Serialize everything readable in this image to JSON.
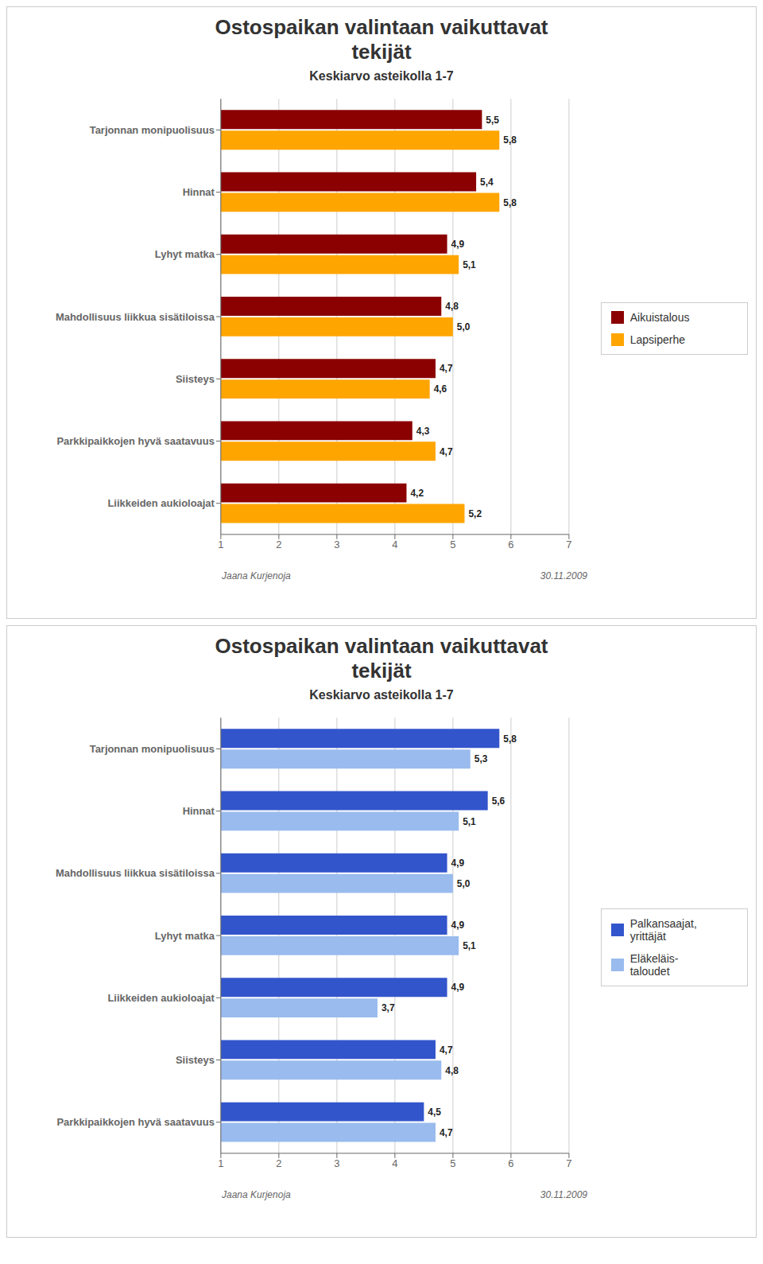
{
  "chart_data": [
    {
      "type": "bar",
      "orientation": "horizontal",
      "title": "Ostospaikan valintaan vaikuttavat\ntekijät",
      "subtitle": "Keskiarvo asteikolla 1-7",
      "categories": [
        "Tarjonnan monipuolisuus",
        "Hinnat",
        "Lyhyt matka",
        "Mahdollisuus liikkua sisätiloissa",
        "Siisteys",
        "Parkkipaikkojen hyvä saatavuus",
        "Liikkeiden aukioloajat"
      ],
      "series": [
        {
          "name": "Aikuistalous",
          "color": "#8B0000",
          "values": [
            5.5,
            5.4,
            4.9,
            4.8,
            4.7,
            4.3,
            4.2
          ],
          "value_labels": [
            "5,5",
            "5,4",
            "4,9",
            "4,8",
            "4,7",
            "4,3",
            "4,2"
          ]
        },
        {
          "name": "Lapsiperhe",
          "color": "#FFA500",
          "values": [
            5.8,
            5.8,
            5.1,
            5.0,
            4.6,
            4.7,
            5.2
          ],
          "value_labels": [
            "5,8",
            "5,8",
            "5,1",
            "5,0",
            "4,6",
            "4,7",
            "5,2"
          ]
        }
      ],
      "xlim": [
        1,
        7
      ],
      "xticks": [
        1,
        2,
        3,
        4,
        5,
        6,
        7
      ],
      "grid": true,
      "legend": "right",
      "data_labels": true,
      "annotations": [
        "Jaana Kurjenoja",
        "30.11.2009"
      ]
    },
    {
      "type": "bar",
      "orientation": "horizontal",
      "title": "Ostospaikan valintaan vaikuttavat\ntekijät",
      "subtitle": "Keskiarvo asteikolla 1-7",
      "categories": [
        "Tarjonnan monipuolisuus",
        "Hinnat",
        "Mahdollisuus liikkua sisätiloissa",
        "Lyhyt matka",
        "Liikkeiden aukioloajat",
        "Siisteys",
        "Parkkipaikkojen hyvä saatavuus"
      ],
      "series": [
        {
          "name": "Palkansaajat,\nyrittäjät",
          "color": "#3355CC",
          "values": [
            5.8,
            5.6,
            4.9,
            4.9,
            4.9,
            4.7,
            4.5
          ],
          "value_labels": [
            "5,8",
            "5,6",
            "4,9",
            "4,9",
            "4,9",
            "4,7",
            "4,5"
          ]
        },
        {
          "name": "Eläkeläis-\ntaloudet",
          "color": "#99BBEE",
          "values": [
            5.3,
            5.1,
            5.0,
            5.1,
            3.7,
            4.8,
            4.7
          ],
          "value_labels": [
            "5,3",
            "5,1",
            "5,0",
            "5,1",
            "3,7",
            "4,8",
            "4,7"
          ]
        }
      ],
      "xlim": [
        1,
        7
      ],
      "xticks": [
        1,
        2,
        3,
        4,
        5,
        6,
        7
      ],
      "grid": true,
      "legend": "right",
      "data_labels": true,
      "annotations": [
        "Jaana Kurjenoja",
        "30.11.2009"
      ]
    }
  ]
}
